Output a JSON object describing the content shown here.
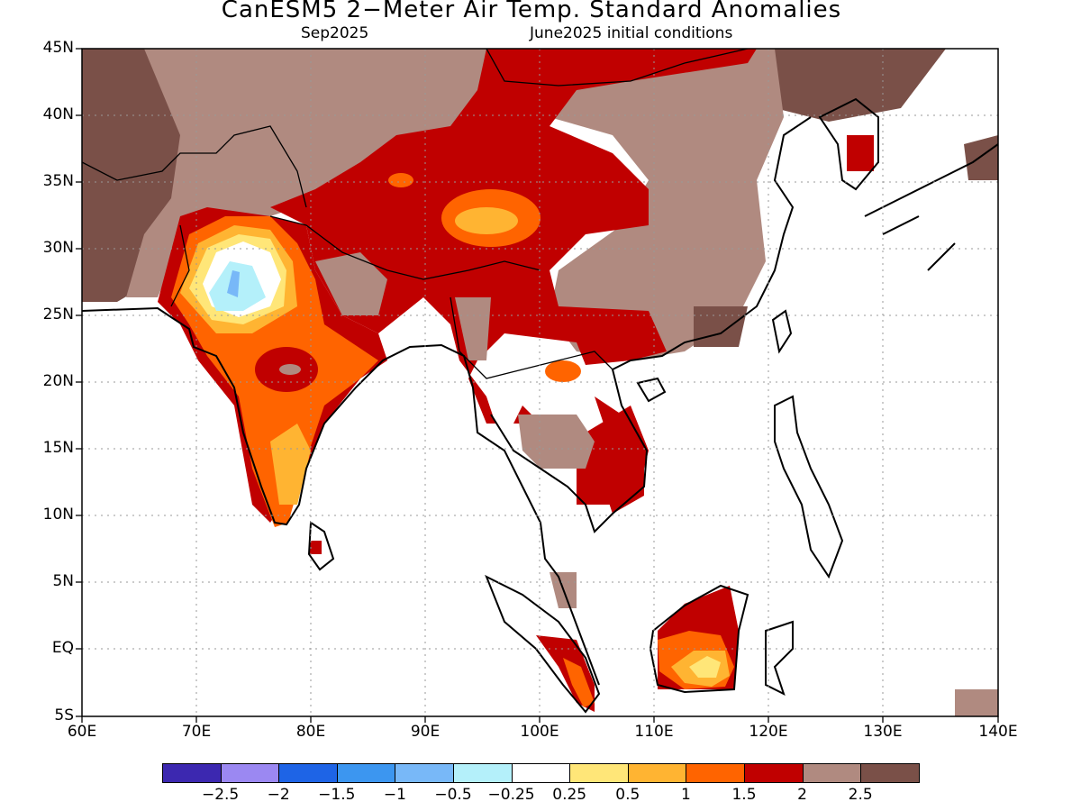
{
  "title": "CanESM5 2−Meter Air Temp. Standard Anomalies",
  "subtitle_left": "Sep2025",
  "subtitle_right": "June2025 initial conditions",
  "lat_ticks": [
    "45N",
    "40N",
    "35N",
    "30N",
    "25N",
    "20N",
    "15N",
    "10N",
    "5N",
    "EQ",
    "5S"
  ],
  "lon_ticks": [
    "60E",
    "70E",
    "80E",
    "90E",
    "100E",
    "110E",
    "120E",
    "130E",
    "140E"
  ],
  "colorbar": {
    "colors": [
      "#3c28b0",
      "#9b88f2",
      "#1e64e6",
      "#3c96f0",
      "#78b8f8",
      "#b4f0fa",
      "#ffffff",
      "#ffe678",
      "#ffb432",
      "#ff6400",
      "#c00000",
      "#b08a80",
      "#7a5048"
    ],
    "labels": [
      "−2.5",
      "−2",
      "−1.5",
      "−1",
      "−0.5",
      "−0.25",
      "0.25",
      "0.5",
      "1",
      "1.5",
      "2",
      "2.5"
    ]
  },
  "map_colors": {
    "ocean": "#ffffff",
    "coast": "#000000",
    "grid": "#999999"
  }
}
